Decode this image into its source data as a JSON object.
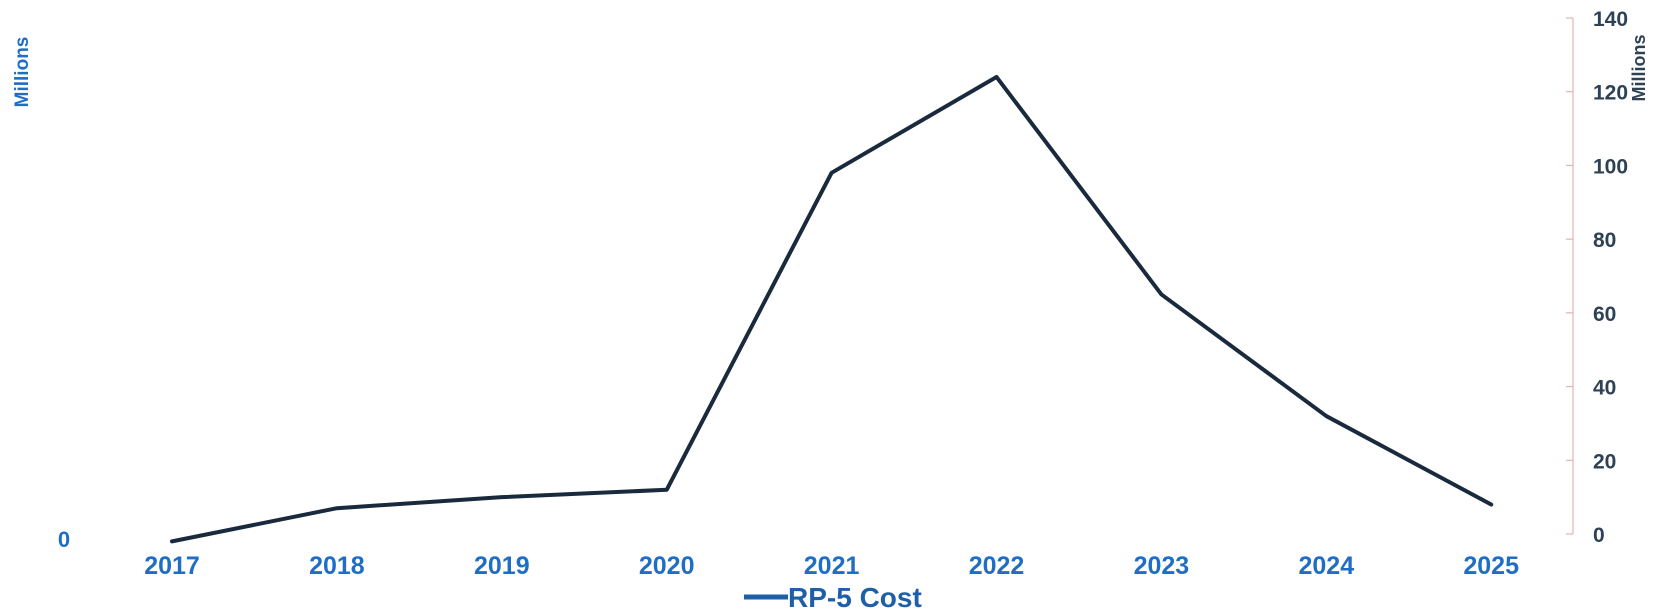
{
  "chart_data": {
    "type": "line",
    "x": [
      "2017",
      "2018",
      "2019",
      "2020",
      "2021",
      "2022",
      "2023",
      "2024",
      "2025"
    ],
    "series": [
      {
        "name": "RP-5 Cost",
        "values": [
          -2,
          7,
          10,
          12,
          98,
          124,
          65,
          32,
          8
        ]
      }
    ],
    "y_left": {
      "label": "Millions",
      "tick_labels": [
        "0"
      ]
    },
    "y_right": {
      "label": "Millions",
      "range": [
        0,
        140
      ],
      "ticks": [
        0,
        20,
        40,
        60,
        80,
        100,
        120,
        140
      ]
    },
    "legend": {
      "position": "bottom"
    },
    "grid": false
  },
  "colors": {
    "line": "#1a2a3d",
    "category_text": "#1f6ec5",
    "left_axis_text": "#1f6ec5",
    "right_axis_text": "#2e4155",
    "right_axis_line": "#e6b3b3",
    "legend_swatch": "#1f5fa8",
    "legend_text": "#1f5fa8"
  }
}
